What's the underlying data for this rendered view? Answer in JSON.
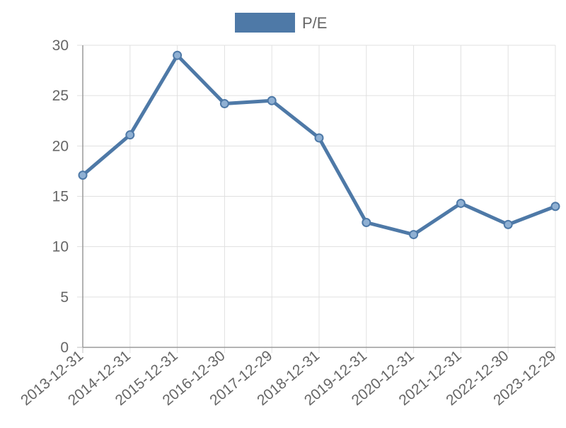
{
  "chart_data": {
    "type": "line",
    "title": "",
    "xlabel": "",
    "ylabel": "",
    "legend_position": "top",
    "ylim": [
      0,
      30
    ],
    "y_ticks": [
      0,
      5,
      10,
      15,
      20,
      25,
      30
    ],
    "grid": true,
    "categories": [
      "2013-12-31",
      "2014-12-31",
      "2015-12-31",
      "2016-12-30",
      "2017-12-29",
      "2018-12-31",
      "2019-12-31",
      "2020-12-31",
      "2021-12-31",
      "2022-12-30",
      "2023-12-29"
    ],
    "series": [
      {
        "name": "P/E",
        "color": "#4e79a7",
        "values": [
          17.1,
          21.1,
          29.0,
          24.2,
          24.5,
          20.8,
          12.4,
          11.2,
          14.3,
          12.2,
          14.0
        ]
      }
    ]
  }
}
